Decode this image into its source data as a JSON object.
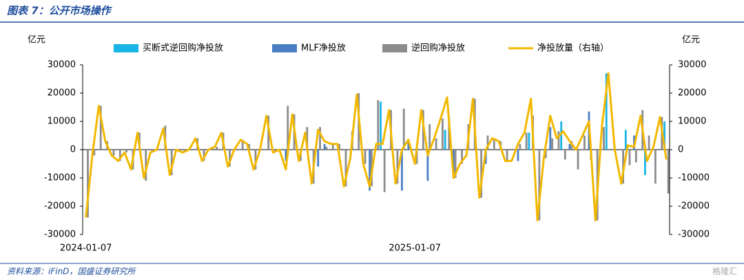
{
  "header": {
    "title": "图表 7：公开市场操作"
  },
  "chart_data": {
    "type": "bar_line",
    "y_label": "亿元",
    "y2_label": "亿元",
    "categories": [
      "2024-01-07",
      null,
      null,
      null,
      null,
      null,
      null,
      null,
      null,
      null,
      null,
      null,
      null,
      null,
      null,
      null,
      null,
      null,
      null,
      null,
      null,
      null,
      null,
      null,
      null,
      null,
      null,
      null,
      null,
      null,
      null,
      null,
      null,
      null,
      null,
      null,
      null,
      null,
      null,
      null,
      null,
      null,
      null,
      null,
      null,
      null,
      null,
      null,
      null,
      null,
      null,
      "2025-01-07",
      null,
      null,
      null,
      null,
      null,
      null,
      null,
      null,
      null,
      null,
      null,
      null,
      null,
      null,
      null,
      null,
      null,
      null,
      null,
      null,
      null,
      null,
      null,
      null,
      null,
      null,
      null,
      null,
      null,
      null,
      null,
      null,
      null,
      null,
      null,
      null,
      null,
      null,
      null
    ],
    "series": [
      {
        "name": "买断式逆回购净投放",
        "color": "#19b4e6",
        "values": [
          0,
          0,
          0,
          0,
          0,
          0,
          0,
          0,
          0,
          0,
          0,
          0,
          0,
          0,
          0,
          0,
          0,
          0,
          0,
          0,
          0,
          0,
          0,
          0,
          0,
          0,
          0,
          0,
          0,
          0,
          0,
          0,
          0,
          0,
          0,
          0,
          0,
          0,
          0,
          0,
          0,
          0,
          0,
          0,
          0,
          0,
          17000,
          0,
          0,
          0,
          0,
          0,
          0,
          0,
          0,
          0,
          7000,
          0,
          0,
          0,
          0,
          0,
          0,
          0,
          0,
          0,
          0,
          0,
          0,
          6000,
          0,
          0,
          0,
          0,
          10000,
          0,
          0,
          0,
          0,
          0,
          0,
          27000,
          0,
          0,
          7000,
          0,
          0,
          -9000,
          0,
          0,
          10000
        ]
      },
      {
        "name": "MLF净投放",
        "color": "#4a7ec3",
        "values": [
          0,
          0,
          0,
          0,
          0,
          0,
          0,
          0,
          0,
          0,
          0,
          0,
          0,
          0,
          0,
          0,
          0,
          0,
          0,
          0,
          0,
          0,
          0,
          0,
          0,
          0,
          0,
          0,
          0,
          0,
          0,
          -4000,
          0,
          0,
          0,
          0,
          -6000,
          2000,
          0,
          0,
          0,
          0,
          0,
          0,
          -14500,
          0,
          0,
          0,
          0,
          -14500,
          3000,
          0,
          0,
          -11000,
          0,
          0,
          0,
          -10000,
          0,
          0,
          0,
          0,
          -5000,
          0,
          0,
          0,
          0,
          -4000,
          0,
          0,
          0,
          0,
          8000,
          0,
          0,
          2000,
          0,
          0,
          13500,
          0,
          0,
          0,
          0,
          0,
          0,
          5000,
          0,
          0,
          0,
          0,
          0
        ]
      },
      {
        "name": "逆回购净投放",
        "color": "#8c8c8c",
        "values": [
          -24000,
          -2000,
          15500,
          3000,
          -2000,
          -4000,
          -1000,
          -7000,
          6000,
          -11000,
          -1000,
          0,
          8500,
          -9000,
          0,
          -1000,
          0,
          4000,
          -4000,
          0,
          1000,
          6000,
          -6000,
          0,
          3500,
          2000,
          -7000,
          0,
          12000,
          -1000,
          0,
          15500,
          12500,
          -4000,
          8000,
          -12000,
          8000,
          1000,
          2000,
          2000,
          -13000,
          6500,
          20000,
          -5000,
          -13000,
          17500,
          -15000,
          14000,
          -12000,
          14500,
          500,
          -5000,
          14000,
          9000,
          4000,
          11000,
          11500,
          -10000,
          -5000,
          9000,
          18000,
          -17000,
          5000,
          4000,
          3000,
          -4000,
          0,
          2000,
          6000,
          12000,
          -25000,
          -3000,
          4000,
          6500,
          -3500,
          3000,
          -7000,
          5000,
          -3500,
          -25000,
          8000,
          0,
          0,
          -12000,
          -5500,
          -4500,
          14000,
          5000,
          -12000,
          11500,
          -15500
        ]
      },
      {
        "name": "净投放量（右轴）",
        "color": "#f2b800",
        "axis": "y2",
        "values": [
          -24000,
          -2000,
          15500,
          3000,
          -2000,
          -4000,
          -1000,
          -7000,
          6000,
          -10000,
          -1000,
          0,
          7500,
          -9000,
          0,
          -1000,
          0,
          4000,
          -4000,
          0,
          1000,
          6000,
          -6000,
          0,
          3500,
          2000,
          -7000,
          0,
          12000,
          -1000,
          0,
          -7000,
          12500,
          -4000,
          6000,
          -12000,
          7000,
          3000,
          2000,
          2000,
          -13000,
          -3000,
          19500,
          -5000,
          -13000,
          2000,
          2000,
          14000,
          -12000,
          0,
          3500,
          -5000,
          14000,
          -2000,
          4000,
          11000,
          18500,
          -10000,
          -5000,
          -2000,
          18000,
          -17000,
          0,
          4000,
          3000,
          -4000,
          -4000,
          2000,
          6000,
          18000,
          -25000,
          -3000,
          12000,
          4000,
          6500,
          3000,
          0,
          5000,
          10000,
          -25000,
          8000,
          27000,
          0,
          -12000,
          1500,
          1000,
          12000,
          -4000,
          1000,
          11500,
          -3500
        ]
      }
    ],
    "ylim": [
      -30000,
      30000
    ],
    "yticks": [
      -30000,
      -20000,
      -10000,
      0,
      10000,
      20000,
      30000
    ],
    "y2lim": [
      -30000,
      30000
    ],
    "y2ticks": [
      -30000,
      -20000,
      -10000,
      0,
      10000,
      20000,
      30000
    ]
  },
  "footer": {
    "source": "资料来源：iFinD，国盛证券研究所",
    "watermark": "格隆汇"
  }
}
